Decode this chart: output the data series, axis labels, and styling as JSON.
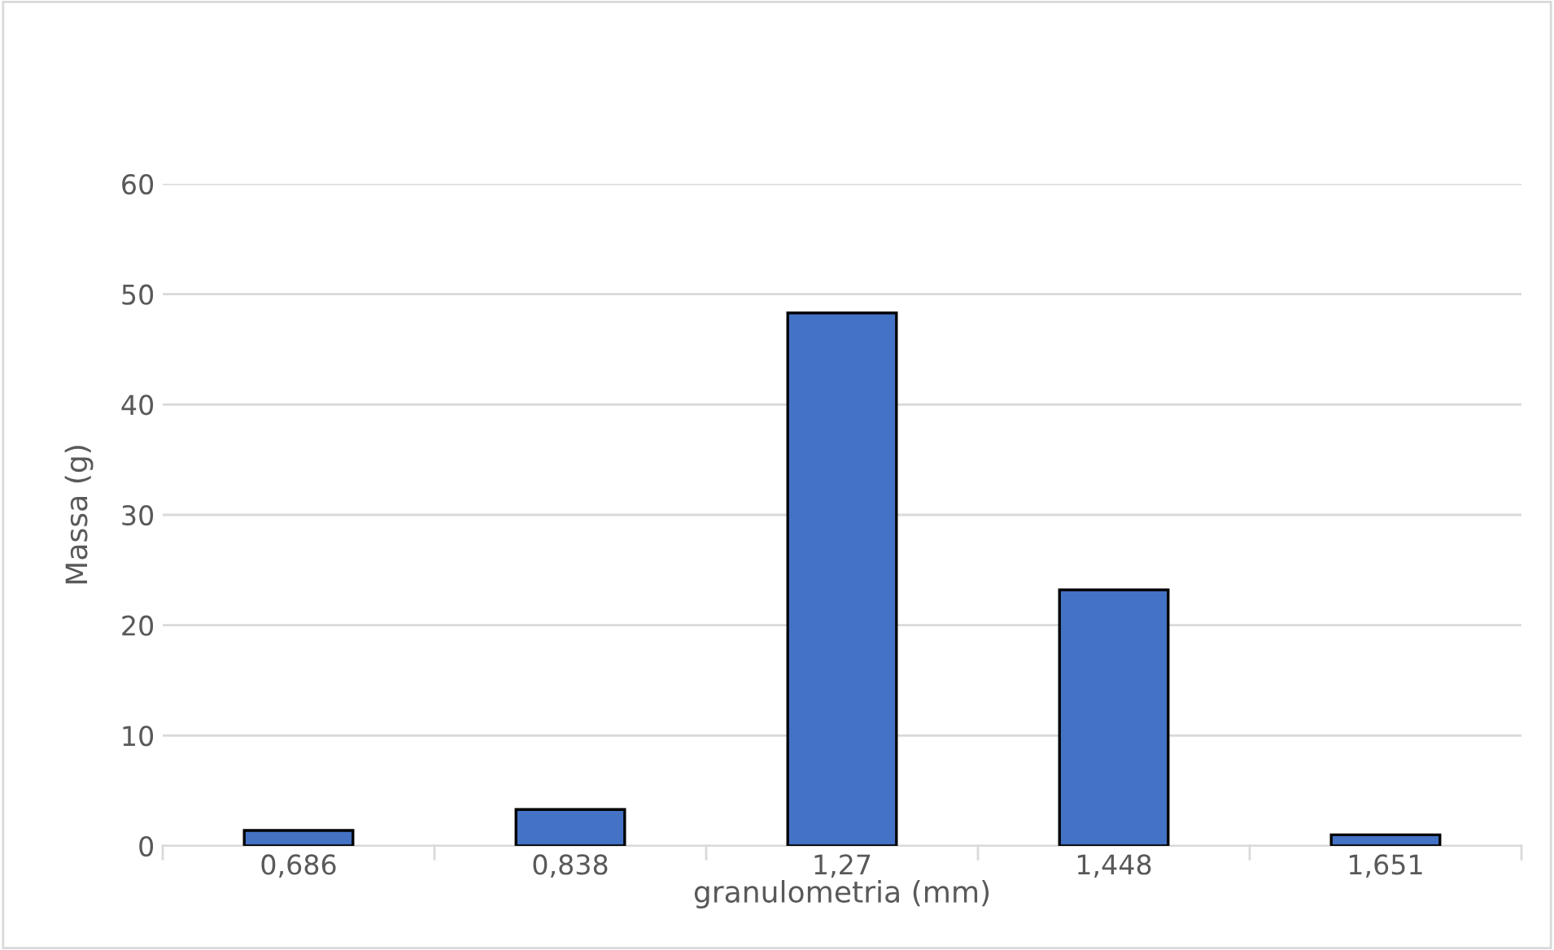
{
  "chart_data": {
    "type": "bar",
    "xlabel": "granulometria (mm)",
    "ylabel": "Massa (g)",
    "categories": [
      "0,686",
      "0,838",
      "1,27",
      "1,448",
      "1,651"
    ],
    "values": [
      1.4,
      3.3,
      48.3,
      23.2,
      1.0
    ],
    "color": "#4472c4",
    "ylim": [
      0,
      60
    ],
    "yticks": [
      0,
      10,
      20,
      30,
      40,
      50,
      60
    ],
    "grid": "y",
    "legend": false
  }
}
